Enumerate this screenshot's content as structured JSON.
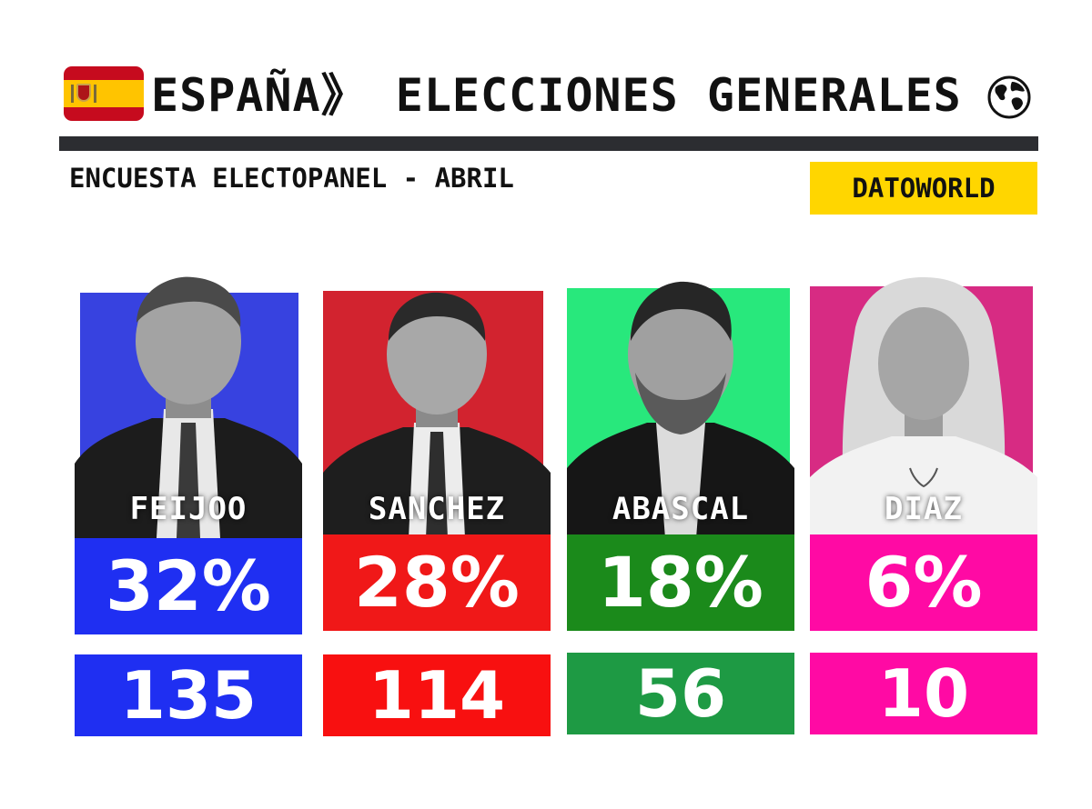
{
  "header": {
    "title": "ESPAÑA》 ELECCIONES GENERALES",
    "flag_icon": "spain-flag-icon",
    "globe_icon": "globe-icon",
    "subtitle": "ENCUESTA ELECTOPANEL - ABRIL",
    "brand": "DATOWORLD",
    "brand_color": "#ffd600"
  },
  "candidates": [
    {
      "name": "FEIJOO",
      "percent": "32%",
      "seats": "135",
      "bg_color": "#3742e0",
      "pct_color": "#1f2ff2",
      "seat_color": "#1f2ff2"
    },
    {
      "name": "SANCHEZ",
      "percent": "28%",
      "seats": "114",
      "bg_color": "#d2232f",
      "pct_color": "#f01818",
      "seat_color": "#f81010"
    },
    {
      "name": "ABASCAL",
      "percent": "18%",
      "seats": "56",
      "bg_color": "#28e87c",
      "pct_color": "#1b8a1b",
      "seat_color": "#1e9a44"
    },
    {
      "name": "DIAZ",
      "percent": "6%",
      "seats": "10",
      "bg_color": "#d72b83",
      "pct_color": "#ff0aa4",
      "seat_color": "#ff0aa4"
    }
  ]
}
